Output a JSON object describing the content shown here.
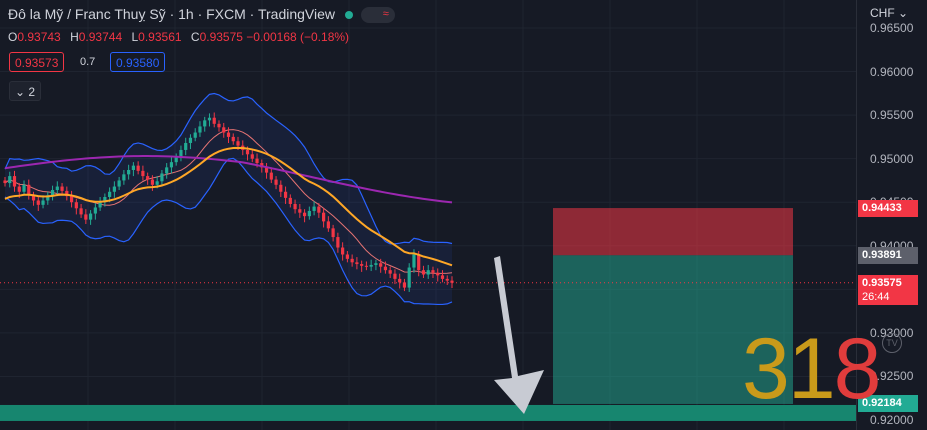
{
  "header": {
    "title": "Đô la Mỹ / Franc Thuỵ Sỹ · 1h · FXCM · TradingView",
    "ohlc": [
      {
        "k": "O",
        "v": "0.93743"
      },
      {
        "k": "H",
        "v": "0.93744"
      },
      {
        "k": "L",
        "v": "0.93561"
      },
      {
        "k": "C",
        "v": "0.93575 −0.00168 (−0.18%)"
      }
    ],
    "sell_price": "0.93573",
    "spread": "0.7",
    "buy_price": "0.93580",
    "collapse_label": "⌄ 2"
  },
  "axis": {
    "currency": "CHF ⌄",
    "ticks": [
      "0.96500",
      "0.96000",
      "0.95500",
      "0.95000",
      "0.94500",
      "0.94000",
      "0.93500",
      "0.93000",
      "0.92500",
      "0.92000"
    ],
    "stop_label": "0.94433",
    "entry_label": "0.93891",
    "current_label": "0.93575",
    "countdown": "26:44",
    "target_label": "0.92184"
  },
  "watermark": {
    "text_a": "31",
    "text_b": "8",
    "logo": "TV"
  },
  "colors": {
    "up": "#22ab94",
    "down": "#f23645",
    "ma_fast": "#ffa726",
    "ma_slow": "#9c27b0",
    "bands": "#2962ff"
  },
  "chart_data": {
    "type": "candlestick",
    "symbol": "USDCHF",
    "timeframe": "1h",
    "ylim": [
      0.92,
      0.965
    ],
    "close_series": [
      0.9472,
      0.948,
      0.9468,
      0.9462,
      0.947,
      0.9458,
      0.9452,
      0.9447,
      0.9452,
      0.9458,
      0.9464,
      0.9468,
      0.9463,
      0.9457,
      0.945,
      0.9443,
      0.9436,
      0.943,
      0.9437,
      0.9444,
      0.945,
      0.9456,
      0.9462,
      0.9468,
      0.9475,
      0.9482,
      0.9487,
      0.9492,
      0.9486,
      0.948,
      0.9476,
      0.947,
      0.9474,
      0.9483,
      0.949,
      0.9496,
      0.9502,
      0.951,
      0.9518,
      0.9524,
      0.953,
      0.9537,
      0.9544,
      0.9547,
      0.954,
      0.9536,
      0.953,
      0.9525,
      0.952,
      0.9515,
      0.951,
      0.9505,
      0.95,
      0.9495,
      0.949,
      0.9484,
      0.9476,
      0.947,
      0.9462,
      0.9455,
      0.9448,
      0.9442,
      0.9438,
      0.9434,
      0.944,
      0.9445,
      0.9438,
      0.9428,
      0.942,
      0.941,
      0.9398,
      0.939,
      0.9385,
      0.9381,
      0.9379,
      0.9377,
      0.9376,
      0.9378,
      0.938,
      0.9376,
      0.9372,
      0.9368,
      0.9362,
      0.9358,
      0.9352,
      0.9375,
      0.939,
      0.9372,
      0.9367,
      0.9372,
      0.9369,
      0.9366,
      0.9362,
      0.936,
      0.93575
    ],
    "stop_loss": 0.94433,
    "entry": 0.93891,
    "take_profit": 0.92184,
    "current_price": 0.93575
  }
}
